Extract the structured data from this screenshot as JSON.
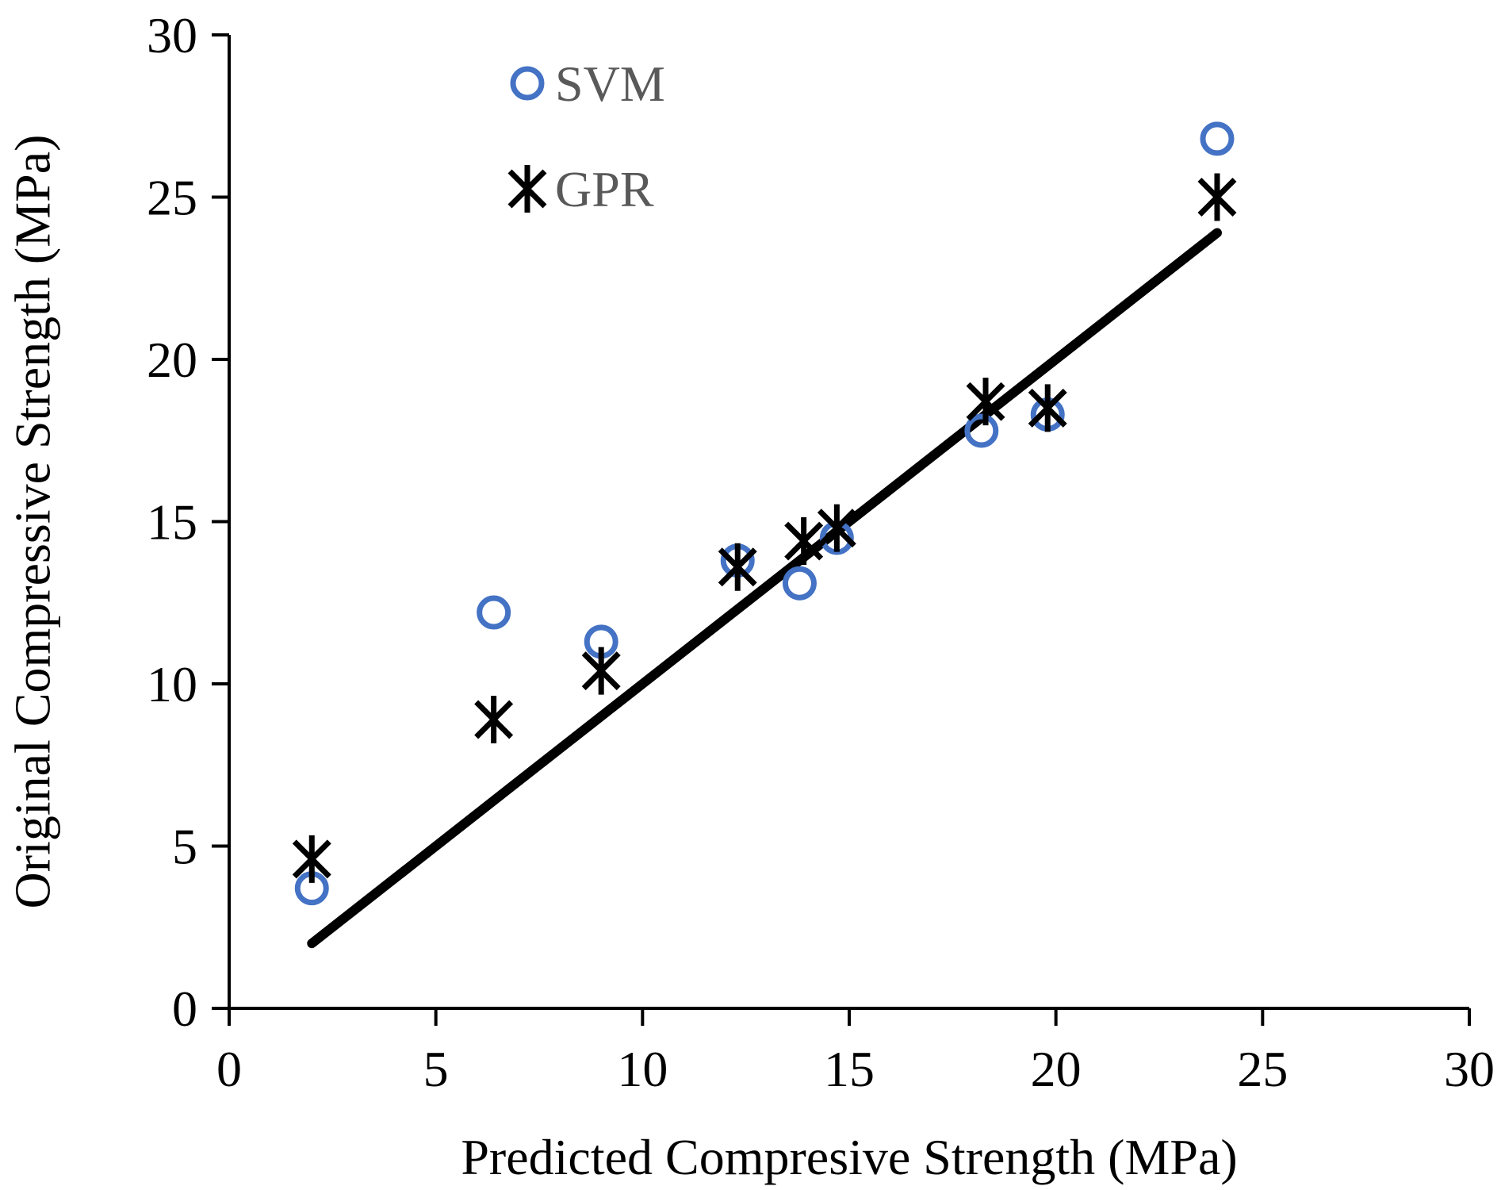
{
  "chart_data": {
    "type": "scatter",
    "title": "",
    "xlabel": "Predicted Compresive Strength (MPa)",
    "ylabel": "Original Compressive Strength (MPa)",
    "xlim": [
      0,
      30
    ],
    "ylim": [
      0,
      30
    ],
    "xticks": [
      0,
      5,
      10,
      15,
      20,
      25,
      30
    ],
    "yticks": [
      0,
      5,
      10,
      15,
      20,
      25,
      30
    ],
    "grid": false,
    "legend_position": "top-left",
    "series": [
      {
        "name": "SVM",
        "marker": "circle",
        "color": "#4472C4",
        "points": [
          [
            2.0,
            3.7
          ],
          [
            6.4,
            12.2
          ],
          [
            9.0,
            11.3
          ],
          [
            12.3,
            13.8
          ],
          [
            13.8,
            13.1
          ],
          [
            14.7,
            14.5
          ],
          [
            18.2,
            17.8
          ],
          [
            19.8,
            18.3
          ],
          [
            23.9,
            26.8
          ]
        ]
      },
      {
        "name": "GPR",
        "marker": "star",
        "color": "#000000",
        "points": [
          [
            2.0,
            4.6
          ],
          [
            6.4,
            8.9
          ],
          [
            9.0,
            10.4
          ],
          [
            12.3,
            13.6
          ],
          [
            13.9,
            14.4
          ],
          [
            14.7,
            14.8
          ],
          [
            18.3,
            18.7
          ],
          [
            19.8,
            18.5
          ],
          [
            23.9,
            25.0
          ]
        ]
      }
    ],
    "reference_line": {
      "x": [
        2.0,
        23.9
      ],
      "y": [
        2.0,
        23.9
      ],
      "color": "#000000"
    }
  }
}
